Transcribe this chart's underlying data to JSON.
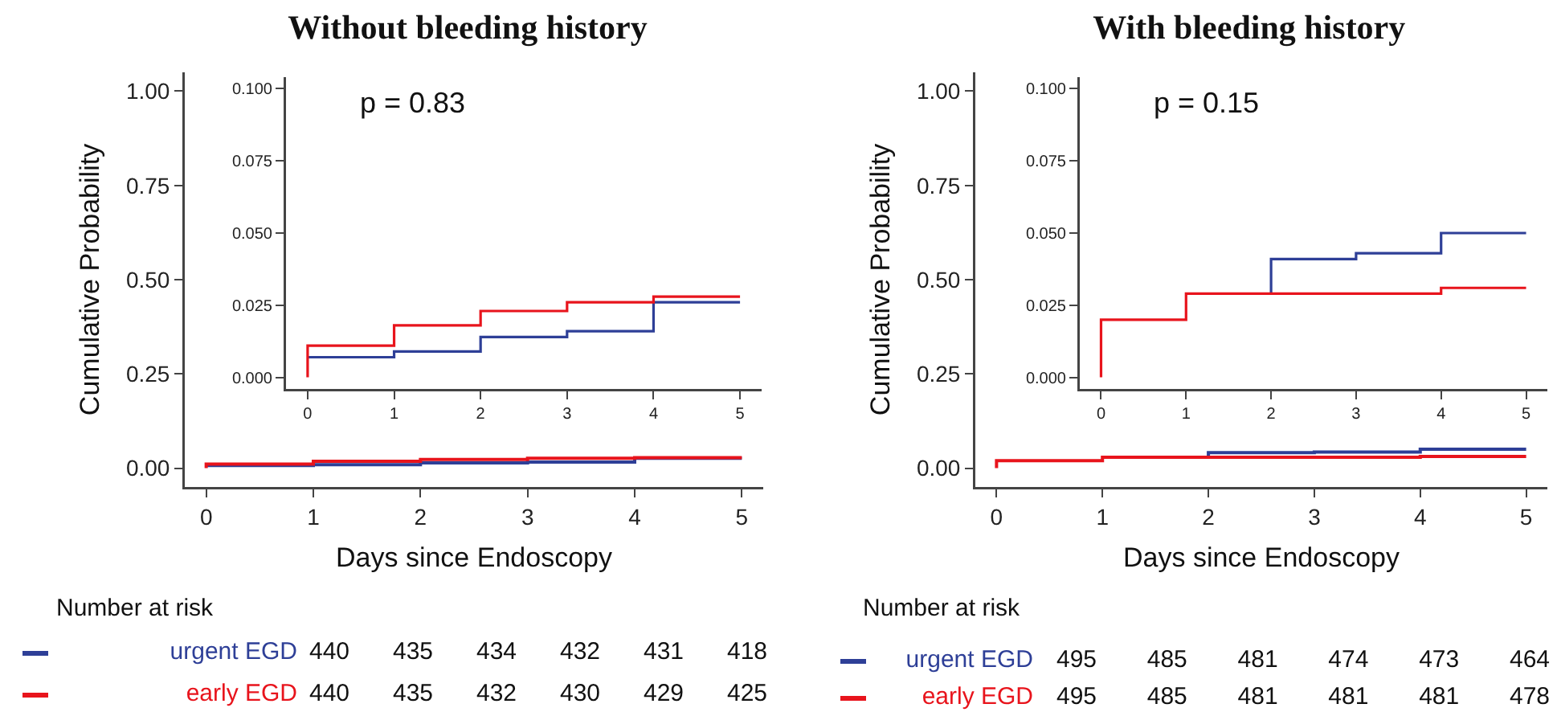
{
  "chart_data": [
    {
      "type": "step",
      "title": "Without bleeding history",
      "xlabel": "Days since Endoscopy",
      "ylabel": "Cumulative Probability",
      "xlim": [
        -0.2,
        5.2
      ],
      "ylim": [
        -0.05,
        1.05
      ],
      "xticks": [
        0,
        1,
        2,
        3,
        4,
        5
      ],
      "yticks": [
        {
          "value": 0,
          "label": "0.00"
        },
        {
          "value": 0.25,
          "label": "0.25"
        },
        {
          "value": 0.5,
          "label": "0.50"
        },
        {
          "value": 0.75,
          "label": "0.75"
        },
        {
          "value": 1,
          "label": "1.00"
        }
      ],
      "series": [
        {
          "color": "#2e3f97",
          "x": [
            0,
            1,
            2,
            3,
            4,
            5
          ],
          "values": [
            0.007,
            0.009,
            0.014,
            0.016,
            0.026,
            0.026
          ]
        },
        {
          "color": "#e8141c",
          "x": [
            0,
            0,
            1,
            2,
            3,
            4,
            5
          ],
          "values": [
            0,
            0.011,
            0.018,
            0.023,
            0.026,
            0.028,
            0.028
          ]
        }
      ]
    },
    {
      "type": "step",
      "xlim": [
        -0.25,
        5.25
      ],
      "ylim": [
        -0.004,
        0.104
      ],
      "xticks": [
        0,
        1,
        2,
        3,
        4,
        5
      ],
      "yticks": [
        {
          "value": 0,
          "label": "0.000"
        },
        {
          "value": 0.025,
          "label": "0.025"
        },
        {
          "value": 0.05,
          "label": "0.050"
        },
        {
          "value": 0.075,
          "label": "0.075"
        },
        {
          "value": 0.1,
          "label": "0.100"
        }
      ],
      "annotations": [
        "p = 0.83"
      ],
      "series": [
        {
          "color": "#2e3f97",
          "x": [
            0,
            1,
            2,
            3,
            4,
            5
          ],
          "values": [
            0.007,
            0.009,
            0.014,
            0.016,
            0.026,
            0.026
          ]
        },
        {
          "color": "#e8141c",
          "x": [
            0,
            0,
            1,
            2,
            3,
            4,
            5
          ],
          "values": [
            0,
            0.011,
            0.018,
            0.023,
            0.026,
            0.028,
            0.028
          ]
        }
      ]
    },
    {
      "type": "other",
      "title": "Number at risk",
      "annotations": [
        "urgent EGD",
        "440",
        "435",
        "434",
        "432",
        "431",
        "418",
        "early EGD",
        "440",
        "435",
        "432",
        "430",
        "429",
        "425"
      ]
    },
    {
      "type": "step",
      "title": "With bleeding history",
      "xlabel": "Days since Endoscopy",
      "ylabel": "Cumulative Probability",
      "xlim": [
        -0.2,
        5.2
      ],
      "ylim": [
        -0.05,
        1.05
      ],
      "xticks": [
        0,
        1,
        2,
        3,
        4,
        5
      ],
      "yticks": [
        {
          "value": 0,
          "label": "0.00"
        },
        {
          "value": 0.25,
          "label": "0.25"
        },
        {
          "value": 0.5,
          "label": "0.50"
        },
        {
          "value": 0.75,
          "label": "0.75"
        },
        {
          "value": 1,
          "label": "1.00"
        }
      ],
      "series": [
        {
          "color": "#2e3f97",
          "x": [
            2,
            2,
            3,
            4,
            5
          ],
          "values": [
            0.029,
            0.041,
            0.043,
            0.05,
            0.05
          ]
        },
        {
          "color": "#e8141c",
          "x": [
            0,
            0,
            1,
            4,
            5
          ],
          "values": [
            0,
            0.02,
            0.029,
            0.031,
            0.031
          ]
        }
      ]
    },
    {
      "type": "step",
      "xlim": [
        -0.25,
        5.25
      ],
      "ylim": [
        -0.004,
        0.104
      ],
      "xticks": [
        0,
        1,
        2,
        3,
        4,
        5
      ],
      "yticks": [
        {
          "value": 0,
          "label": "0.000"
        },
        {
          "value": 0.025,
          "label": "0.025"
        },
        {
          "value": 0.05,
          "label": "0.050"
        },
        {
          "value": 0.075,
          "label": "0.075"
        },
        {
          "value": 0.1,
          "label": "0.100"
        }
      ],
      "annotations": [
        "p = 0.15"
      ],
      "series": [
        {
          "color": "#2e3f97",
          "x": [
            2,
            2,
            3,
            4,
            5
          ],
          "values": [
            0.029,
            0.041,
            0.043,
            0.05,
            0.05
          ]
        },
        {
          "color": "#e8141c",
          "x": [
            0,
            0,
            1,
            4,
            5
          ],
          "values": [
            0,
            0.02,
            0.029,
            0.031,
            0.031
          ]
        }
      ]
    },
    {
      "type": "other",
      "title": "Number at risk",
      "annotations": [
        "urgent EGD",
        "495",
        "485",
        "481",
        "474",
        "473",
        "464",
        "early EGD",
        "495",
        "485",
        "481",
        "481",
        "481",
        "478"
      ]
    }
  ]
}
